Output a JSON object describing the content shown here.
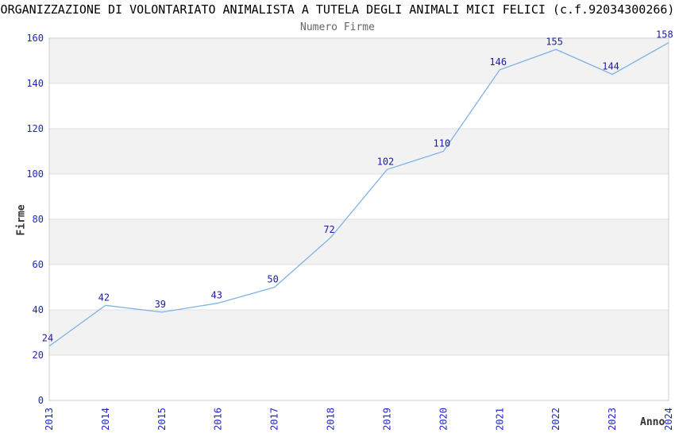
{
  "chart_data": {
    "type": "line",
    "title": "ORGANIZZAZIONE DI VOLONTARIATO ANIMALISTA A TUTELA DEGLI ANIMALI MICI FELICI (c.f.92034300266)",
    "subtitle": "Numero Firme",
    "xlabel": "Anno",
    "ylabel": "Firme",
    "categories": [
      "2013",
      "2014",
      "2015",
      "2016",
      "2017",
      "2018",
      "2019",
      "2020",
      "2021",
      "2022",
      "2023",
      "2024"
    ],
    "values": [
      24,
      42,
      39,
      43,
      50,
      72,
      102,
      110,
      146,
      155,
      144,
      158
    ],
    "ylim": [
      0,
      160
    ],
    "ytick_step": 20,
    "yticks": [
      0,
      20,
      40,
      60,
      80,
      100,
      120,
      140,
      160
    ],
    "grid": "horizontal-gridlines-with-alternating-bands",
    "legend": "none",
    "point_markers": "none",
    "x_tick_rotation": -90,
    "colors": {
      "line": "#7fb2e6",
      "data_label": "#1c1c9e",
      "tick_label": "#2323cc",
      "title": "#000000",
      "subtitle": "#666666",
      "axis_title": "#333333",
      "band_fill": "#f2f2f2",
      "grid_line": "#e0e0e0",
      "plot_border": "#cccccc",
      "background": "#ffffff"
    }
  }
}
